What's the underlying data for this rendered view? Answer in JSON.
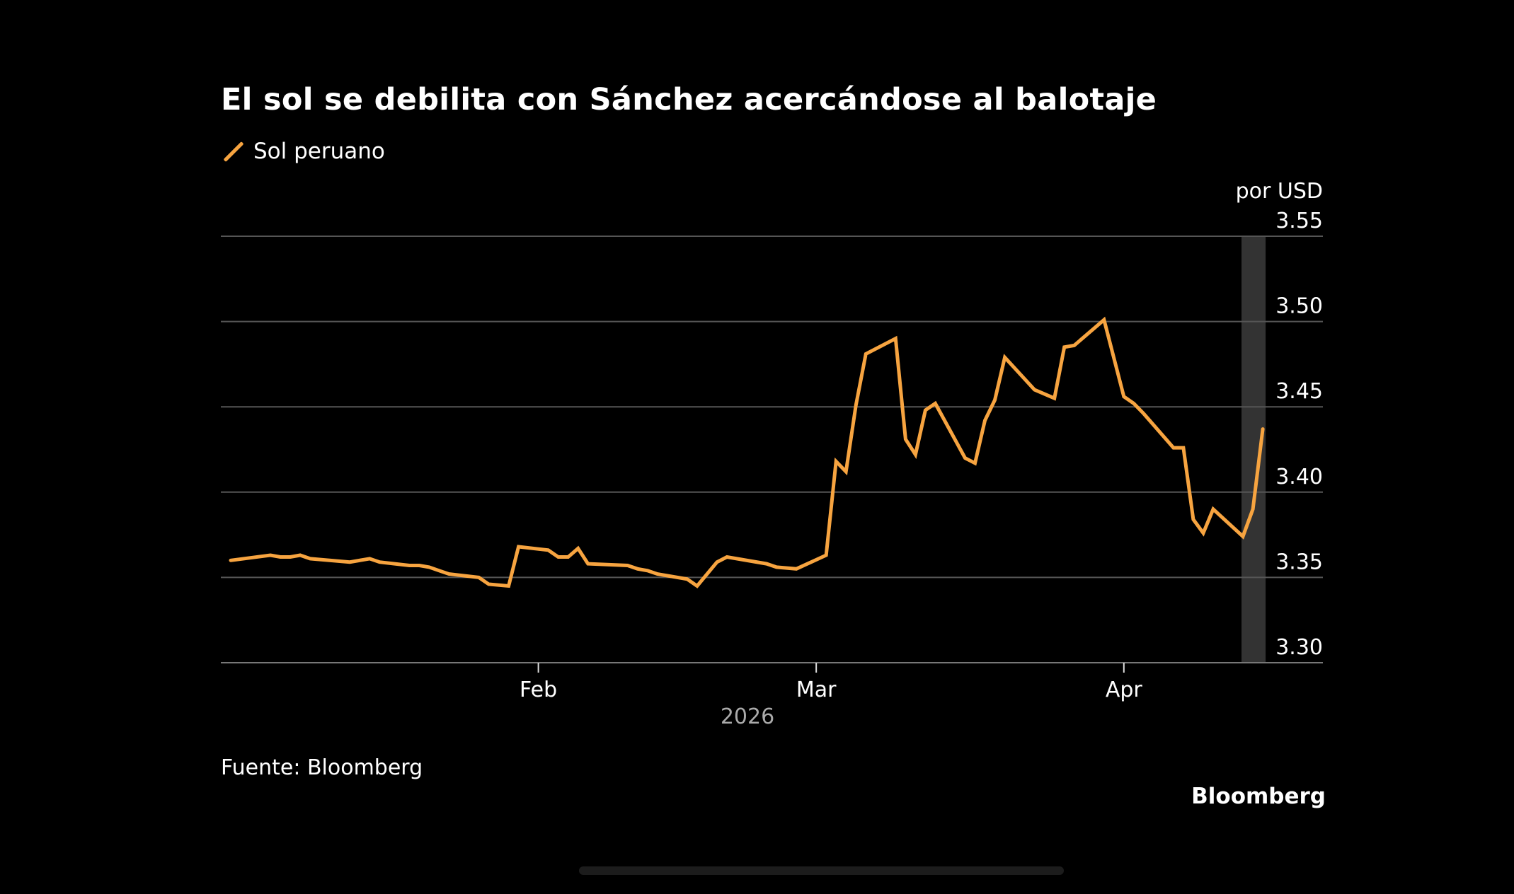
{
  "chart_data": {
    "type": "line",
    "title": "El sol se debilita con Sánchez acercándose al balotaje",
    "ylabel": "por USD",
    "xlabel": "2026",
    "source": "Fuente: Bloomberg",
    "brand": "Bloomberg",
    "ylim": [
      3.3,
      3.55
    ],
    "yticks": [
      "3.30",
      "3.35",
      "3.40",
      "3.45",
      "3.50",
      "3.55"
    ],
    "xticks": [
      {
        "date": "2026-02-01",
        "label": "Feb"
      },
      {
        "date": "2026-03-01",
        "label": "Mar"
      },
      {
        "date": "2026-04-01",
        "label": "Apr"
      }
    ],
    "grid": true,
    "legend_placement": "top-left",
    "highlight_range": [
      "2026-04-13",
      "2026-04-15"
    ],
    "colors": {
      "line": "#f7a440",
      "grid": "#555555",
      "highlight": "#333333",
      "background": "#000000"
    },
    "series": [
      {
        "name": "Sol peruano",
        "x": [
          "2026-01-01",
          "2026-01-05",
          "2026-01-06",
          "2026-01-07",
          "2026-01-08",
          "2026-01-09",
          "2026-01-13",
          "2026-01-15",
          "2026-01-16",
          "2026-01-19",
          "2026-01-20",
          "2026-01-21",
          "2026-01-22",
          "2026-01-23",
          "2026-01-26",
          "2026-01-27",
          "2026-01-29",
          "2026-01-30",
          "2026-02-02",
          "2026-02-03",
          "2026-02-04",
          "2026-02-05",
          "2026-02-06",
          "2026-02-10",
          "2026-02-11",
          "2026-02-12",
          "2026-02-13",
          "2026-02-16",
          "2026-02-17",
          "2026-02-19",
          "2026-02-20",
          "2026-02-24",
          "2026-02-25",
          "2026-02-27",
          "2026-03-02",
          "2026-03-03",
          "2026-03-04",
          "2026-03-05",
          "2026-03-06",
          "2026-03-09",
          "2026-03-10",
          "2026-03-11",
          "2026-03-12",
          "2026-03-13",
          "2026-03-16",
          "2026-03-17",
          "2026-03-18",
          "2026-03-19",
          "2026-03-20",
          "2026-03-23",
          "2026-03-25",
          "2026-03-26",
          "2026-03-27",
          "2026-03-30",
          "2026-04-01",
          "2026-04-02",
          "2026-04-03",
          "2026-04-06",
          "2026-04-07",
          "2026-04-08",
          "2026-04-09",
          "2026-04-10",
          "2026-04-13",
          "2026-04-14",
          "2026-04-15"
        ],
        "values": [
          3.36,
          3.363,
          3.362,
          3.362,
          3.363,
          3.361,
          3.359,
          3.361,
          3.359,
          3.357,
          3.357,
          3.356,
          3.354,
          3.352,
          3.35,
          3.346,
          3.345,
          3.368,
          3.366,
          3.362,
          3.362,
          3.367,
          3.358,
          3.357,
          3.355,
          3.354,
          3.352,
          3.349,
          3.345,
          3.359,
          3.362,
          3.358,
          3.356,
          3.355,
          3.363,
          3.418,
          3.412,
          3.451,
          3.481,
          3.49,
          3.431,
          3.422,
          3.448,
          3.452,
          3.42,
          3.417,
          3.442,
          3.454,
          3.479,
          3.46,
          3.455,
          3.485,
          3.486,
          3.501,
          3.456,
          3.452,
          3.446,
          3.426,
          3.426,
          3.384,
          3.376,
          3.39,
          3.374,
          3.39,
          3.437
        ]
      }
    ]
  }
}
